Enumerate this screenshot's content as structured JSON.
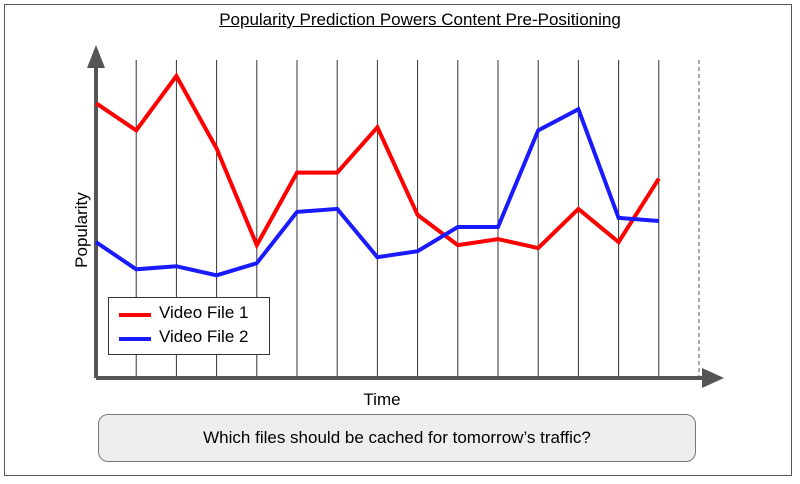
{
  "title": "Popularity Prediction Powers Content Pre-Positioning",
  "question": "Which files should be cached for tomorrow’s traffic?",
  "chart_data": {
    "type": "line",
    "xlabel": "Time",
    "ylabel": "Popularity",
    "grid": "vertical",
    "legend_position": "bottom-left",
    "x": [
      1,
      2,
      3,
      4,
      5,
      6,
      7,
      8,
      9,
      10,
      11,
      12,
      13,
      14,
      15
    ],
    "series": [
      {
        "name": "Video File 1",
        "color": "#ff0000",
        "values": [
          9.1,
          8.2,
          10.0,
          7.6,
          4.4,
          6.8,
          6.8,
          8.3,
          5.4,
          4.4,
          4.6,
          4.3,
          5.6,
          4.5,
          6.6
        ]
      },
      {
        "name": "Video File 2",
        "color": "#1a1aff",
        "values": [
          4.5,
          3.6,
          3.7,
          3.4,
          3.8,
          5.5,
          5.6,
          4.0,
          4.2,
          5.0,
          5.0,
          8.2,
          8.9,
          5.3,
          5.2
        ]
      }
    ]
  }
}
